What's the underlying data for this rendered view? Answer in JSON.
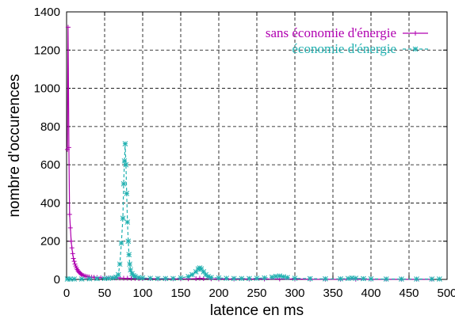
{
  "chart_data": {
    "type": "line",
    "title": "",
    "xlabel": "latence en ms",
    "ylabel": "nombre d'occurences",
    "xlim": [
      0,
      500
    ],
    "ylim": [
      0,
      1400
    ],
    "xticks": [
      0,
      50,
      100,
      150,
      200,
      250,
      300,
      350,
      400,
      450,
      500
    ],
    "yticks": [
      0,
      200,
      400,
      600,
      800,
      1000,
      1200,
      1400
    ],
    "grid": true,
    "legend_position": "top-right",
    "series": [
      {
        "name": "sans économie d'énergie",
        "color": "#b000b0",
        "line_style": "solid",
        "marker": "plus",
        "x": [
          1,
          2,
          3,
          4,
          5,
          6,
          7,
          8,
          9,
          10,
          11,
          12,
          13,
          14,
          15,
          16,
          17,
          18,
          19,
          20,
          22,
          24,
          26,
          28,
          30,
          33,
          36,
          40,
          45,
          50,
          55,
          60,
          65,
          70,
          75,
          80,
          85,
          90,
          95,
          100,
          110,
          120,
          130,
          140,
          150,
          160,
          170,
          175,
          180,
          190,
          200,
          220,
          240,
          260,
          280,
          300,
          320,
          340,
          360,
          380,
          400,
          420,
          440,
          460,
          480
        ],
        "y": [
          680,
          1320,
          690,
          340,
          270,
          200,
          165,
          135,
          110,
          95,
          80,
          70,
          60,
          52,
          45,
          40,
          35,
          32,
          28,
          25,
          21,
          18,
          16,
          14,
          13,
          12,
          11,
          10,
          9,
          8,
          8,
          8,
          8,
          7,
          6,
          6,
          5,
          5,
          4,
          4,
          4,
          3,
          3,
          3,
          3,
          3,
          4,
          6,
          4,
          3,
          2,
          2,
          2,
          2,
          2,
          2,
          1,
          1,
          1,
          1,
          1,
          1,
          1,
          1,
          1
        ]
      },
      {
        "name": "économie d'énergie",
        "color": "#20b0b0",
        "line_style": "dashed",
        "marker": "star",
        "x": [
          1,
          5,
          10,
          20,
          30,
          40,
          50,
          55,
          60,
          65,
          68,
          70,
          72,
          74,
          75,
          76,
          77,
          78,
          79,
          80,
          81,
          82,
          83,
          84,
          86,
          88,
          90,
          95,
          100,
          110,
          120,
          130,
          140,
          150,
          160,
          165,
          170,
          173,
          175,
          177,
          180,
          183,
          186,
          190,
          200,
          210,
          220,
          230,
          240,
          250,
          260,
          270,
          275,
          280,
          285,
          290,
          300,
          320,
          340,
          360,
          370,
          375,
          380,
          390,
          400,
          420,
          440,
          460,
          480,
          490
        ],
        "y": [
          2,
          2,
          2,
          2,
          3,
          4,
          5,
          6,
          8,
          12,
          25,
          80,
          190,
          320,
          500,
          620,
          710,
          600,
          450,
          300,
          200,
          130,
          80,
          50,
          30,
          20,
          15,
          10,
          8,
          6,
          5,
          5,
          5,
          8,
          15,
          25,
          40,
          55,
          60,
          55,
          40,
          25,
          15,
          10,
          8,
          6,
          5,
          5,
          5,
          6,
          8,
          12,
          16,
          18,
          14,
          10,
          6,
          4,
          3,
          3,
          5,
          8,
          6,
          4,
          3,
          2,
          2,
          2,
          2,
          2
        ]
      }
    ]
  }
}
